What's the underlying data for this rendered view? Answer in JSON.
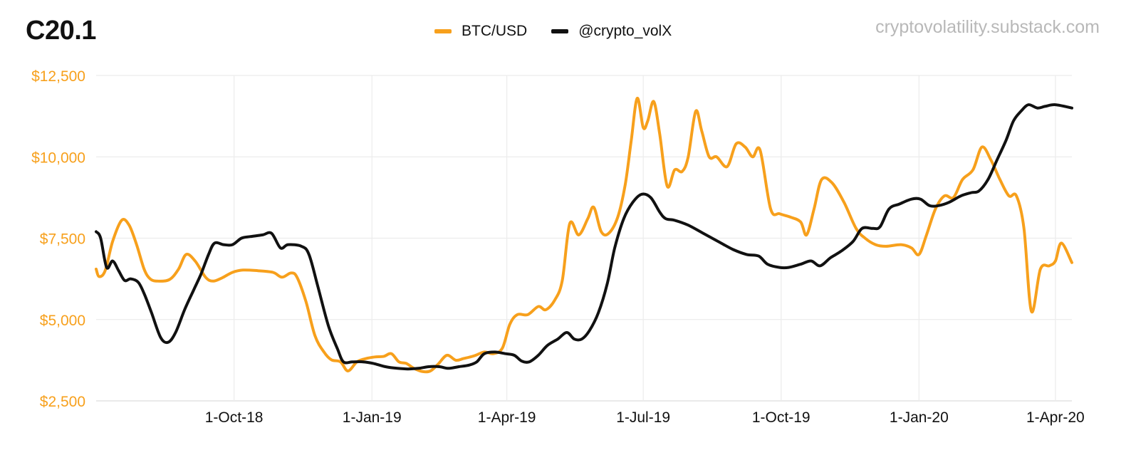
{
  "header": {
    "title": "C20.1",
    "source": "cryptovolatility.substack.com"
  },
  "colors": {
    "btc": "#f7a01c",
    "vol": "#111111",
    "grid": "#ececec",
    "ytick": "#f7a01c",
    "xtick": "#111111"
  },
  "chart_data": {
    "type": "line",
    "xlabel": "",
    "ylabel": "",
    "ylim": [
      2500,
      12500
    ],
    "xlim": [
      "2018-07-01",
      "2020-04-12"
    ],
    "y_ticks": [
      2500,
      5000,
      7500,
      10000,
      12500
    ],
    "y_tick_labels": [
      "$2,500",
      "$5,000",
      "$7,500",
      "$10,000",
      "$12,500"
    ],
    "x_ticks": [
      "2018-10-01",
      "2019-01-01",
      "2019-04-01",
      "2019-07-01",
      "2019-10-01",
      "2020-01-01",
      "2020-04-01"
    ],
    "x_tick_labels": [
      "1-Oct-18",
      "1-Jan-19",
      "1-Apr-19",
      "1-Jul-19",
      "1-Oct-19",
      "1-Jan-20",
      "1-Apr-20"
    ],
    "grid": "vertical and horizontal",
    "legend": "top-center",
    "series": [
      {
        "name": "BTC/USD",
        "color": "#f7a01c",
        "points": [
          [
            "2018-07-01",
            6550
          ],
          [
            "2018-07-03",
            6320
          ],
          [
            "2018-07-07",
            6500
          ],
          [
            "2018-07-12",
            7400
          ],
          [
            "2018-07-18",
            8050
          ],
          [
            "2018-07-23",
            7900
          ],
          [
            "2018-07-28",
            7300
          ],
          [
            "2018-08-02",
            6550
          ],
          [
            "2018-08-06",
            6250
          ],
          [
            "2018-08-11",
            6180
          ],
          [
            "2018-08-19",
            6230
          ],
          [
            "2018-08-25",
            6550
          ],
          [
            "2018-08-30",
            7000
          ],
          [
            "2018-09-05",
            6800
          ],
          [
            "2018-09-12",
            6300
          ],
          [
            "2018-09-17",
            6180
          ],
          [
            "2018-09-23",
            6280
          ],
          [
            "2018-09-30",
            6450
          ],
          [
            "2018-10-07",
            6520
          ],
          [
            "2018-10-17",
            6500
          ],
          [
            "2018-10-27",
            6450
          ],
          [
            "2018-11-02",
            6300
          ],
          [
            "2018-11-08",
            6430
          ],
          [
            "2018-11-12",
            6300
          ],
          [
            "2018-11-18",
            5550
          ],
          [
            "2018-11-24",
            4500
          ],
          [
            "2018-11-30",
            4000
          ],
          [
            "2018-12-05",
            3760
          ],
          [
            "2018-12-11",
            3700
          ],
          [
            "2018-12-16",
            3420
          ],
          [
            "2018-12-22",
            3700
          ],
          [
            "2018-12-28",
            3800
          ],
          [
            "2019-01-03",
            3850
          ],
          [
            "2019-01-09",
            3870
          ],
          [
            "2019-01-14",
            3950
          ],
          [
            "2019-01-19",
            3700
          ],
          [
            "2019-01-24",
            3650
          ],
          [
            "2019-01-29",
            3500
          ],
          [
            "2019-02-04",
            3400
          ],
          [
            "2019-02-09",
            3420
          ],
          [
            "2019-02-14",
            3620
          ],
          [
            "2019-02-20",
            3900
          ],
          [
            "2019-02-26",
            3750
          ],
          [
            "2019-03-03",
            3800
          ],
          [
            "2019-03-10",
            3880
          ],
          [
            "2019-03-17",
            4000
          ],
          [
            "2019-03-23",
            3950
          ],
          [
            "2019-03-29",
            4120
          ],
          [
            "2019-04-03",
            4850
          ],
          [
            "2019-04-08",
            5150
          ],
          [
            "2019-04-15",
            5150
          ],
          [
            "2019-04-22",
            5400
          ],
          [
            "2019-04-27",
            5300
          ],
          [
            "2019-05-03",
            5600
          ],
          [
            "2019-05-08",
            6200
          ],
          [
            "2019-05-13",
            7950
          ],
          [
            "2019-05-19",
            7600
          ],
          [
            "2019-05-25",
            8100
          ],
          [
            "2019-05-29",
            8450
          ],
          [
            "2019-06-03",
            7700
          ],
          [
            "2019-06-08",
            7650
          ],
          [
            "2019-06-14",
            8150
          ],
          [
            "2019-06-19",
            9150
          ],
          [
            "2019-06-23",
            10500
          ],
          [
            "2019-06-27",
            11800
          ],
          [
            "2019-07-01",
            10900
          ],
          [
            "2019-07-04",
            11100
          ],
          [
            "2019-07-08",
            11700
          ],
          [
            "2019-07-12",
            10700
          ],
          [
            "2019-07-17",
            9100
          ],
          [
            "2019-07-22",
            9600
          ],
          [
            "2019-07-27",
            9550
          ],
          [
            "2019-07-31",
            10000
          ],
          [
            "2019-08-05",
            11400
          ],
          [
            "2019-08-09",
            10800
          ],
          [
            "2019-08-14",
            10000
          ],
          [
            "2019-08-19",
            10000
          ],
          [
            "2019-08-26",
            9700
          ],
          [
            "2019-09-01",
            10400
          ],
          [
            "2019-09-07",
            10300
          ],
          [
            "2019-09-12",
            10000
          ],
          [
            "2019-09-17",
            10200
          ],
          [
            "2019-09-24",
            8400
          ],
          [
            "2019-09-30",
            8250
          ],
          [
            "2019-10-07",
            8150
          ],
          [
            "2019-10-14",
            8000
          ],
          [
            "2019-10-18",
            7600
          ],
          [
            "2019-10-23",
            8400
          ],
          [
            "2019-10-28",
            9300
          ],
          [
            "2019-11-04",
            9200
          ],
          [
            "2019-11-12",
            8600
          ],
          [
            "2019-11-20",
            7800
          ],
          [
            "2019-11-26",
            7500
          ],
          [
            "2019-12-03",
            7300
          ],
          [
            "2019-12-10",
            7250
          ],
          [
            "2019-12-20",
            7300
          ],
          [
            "2019-12-27",
            7200
          ],
          [
            "2020-01-01",
            7000
          ],
          [
            "2020-01-06",
            7600
          ],
          [
            "2020-01-12",
            8400
          ],
          [
            "2020-01-18",
            8800
          ],
          [
            "2020-01-24",
            8750
          ],
          [
            "2020-01-30",
            9300
          ],
          [
            "2020-02-06",
            9600
          ],
          [
            "2020-02-12",
            10300
          ],
          [
            "2020-02-18",
            9900
          ],
          [
            "2020-02-24",
            9300
          ],
          [
            "2020-03-01",
            8800
          ],
          [
            "2020-03-06",
            8800
          ],
          [
            "2020-03-11",
            7800
          ],
          [
            "2020-03-16",
            5250
          ],
          [
            "2020-03-22",
            6550
          ],
          [
            "2020-03-28",
            6650
          ],
          [
            "2020-04-01",
            6800
          ],
          [
            "2020-04-05",
            7350
          ],
          [
            "2020-04-12",
            6750
          ]
        ]
      },
      {
        "name": "@crypto_volX",
        "color": "#111111",
        "points": [
          [
            "2018-07-01",
            7700
          ],
          [
            "2018-07-04",
            7500
          ],
          [
            "2018-07-08",
            6600
          ],
          [
            "2018-07-12",
            6800
          ],
          [
            "2018-07-16",
            6500
          ],
          [
            "2018-07-20",
            6200
          ],
          [
            "2018-07-24",
            6250
          ],
          [
            "2018-07-29",
            6150
          ],
          [
            "2018-08-02",
            5800
          ],
          [
            "2018-08-07",
            5200
          ],
          [
            "2018-08-13",
            4450
          ],
          [
            "2018-08-18",
            4300
          ],
          [
            "2018-08-23",
            4600
          ],
          [
            "2018-08-29",
            5300
          ],
          [
            "2018-09-04",
            5900
          ],
          [
            "2018-09-09",
            6400
          ],
          [
            "2018-09-14",
            7000
          ],
          [
            "2018-09-18",
            7350
          ],
          [
            "2018-09-24",
            7300
          ],
          [
            "2018-09-30",
            7300
          ],
          [
            "2018-10-06",
            7500
          ],
          [
            "2018-10-12",
            7550
          ],
          [
            "2018-10-20",
            7600
          ],
          [
            "2018-10-26",
            7650
          ],
          [
            "2018-11-01",
            7200
          ],
          [
            "2018-11-06",
            7300
          ],
          [
            "2018-11-15",
            7250
          ],
          [
            "2018-11-20",
            7000
          ],
          [
            "2018-11-26",
            6000
          ],
          [
            "2018-12-03",
            4800
          ],
          [
            "2018-12-09",
            4100
          ],
          [
            "2018-12-13",
            3700
          ],
          [
            "2018-12-19",
            3700
          ],
          [
            "2018-12-26",
            3700
          ],
          [
            "2019-01-02",
            3650
          ],
          [
            "2019-01-10",
            3550
          ],
          [
            "2019-01-18",
            3500
          ],
          [
            "2019-01-25",
            3480
          ],
          [
            "2019-02-01",
            3500
          ],
          [
            "2019-02-08",
            3550
          ],
          [
            "2019-02-15",
            3550
          ],
          [
            "2019-02-21",
            3500
          ],
          [
            "2019-02-28",
            3550
          ],
          [
            "2019-03-07",
            3600
          ],
          [
            "2019-03-12",
            3700
          ],
          [
            "2019-03-17",
            3950
          ],
          [
            "2019-03-24",
            4000
          ],
          [
            "2019-03-31",
            3950
          ],
          [
            "2019-04-06",
            3900
          ],
          [
            "2019-04-11",
            3720
          ],
          [
            "2019-04-16",
            3700
          ],
          [
            "2019-04-22",
            3900
          ],
          [
            "2019-04-28",
            4200
          ],
          [
            "2019-05-05",
            4400
          ],
          [
            "2019-05-11",
            4600
          ],
          [
            "2019-05-16",
            4400
          ],
          [
            "2019-05-21",
            4400
          ],
          [
            "2019-05-26",
            4650
          ],
          [
            "2019-06-01",
            5200
          ],
          [
            "2019-06-07",
            6100
          ],
          [
            "2019-06-12",
            7200
          ],
          [
            "2019-06-18",
            8100
          ],
          [
            "2019-06-24",
            8600
          ],
          [
            "2019-06-30",
            8850
          ],
          [
            "2019-07-06",
            8750
          ],
          [
            "2019-07-12",
            8300
          ],
          [
            "2019-07-16",
            8100
          ],
          [
            "2019-07-22",
            8050
          ],
          [
            "2019-07-31",
            7900
          ],
          [
            "2019-08-10",
            7650
          ],
          [
            "2019-08-20",
            7400
          ],
          [
            "2019-08-30",
            7150
          ],
          [
            "2019-09-08",
            7000
          ],
          [
            "2019-09-16",
            6950
          ],
          [
            "2019-09-22",
            6700
          ],
          [
            "2019-09-30",
            6600
          ],
          [
            "2019-10-06",
            6600
          ],
          [
            "2019-10-14",
            6700
          ],
          [
            "2019-10-21",
            6800
          ],
          [
            "2019-10-27",
            6650
          ],
          [
            "2019-11-03",
            6900
          ],
          [
            "2019-11-10",
            7100
          ],
          [
            "2019-11-18",
            7400
          ],
          [
            "2019-11-24",
            7800
          ],
          [
            "2019-12-01",
            7800
          ],
          [
            "2019-12-06",
            7850
          ],
          [
            "2019-12-12",
            8400
          ],
          [
            "2019-12-19",
            8550
          ],
          [
            "2019-12-27",
            8700
          ],
          [
            "2020-01-02",
            8700
          ],
          [
            "2020-01-08",
            8500
          ],
          [
            "2020-01-14",
            8500
          ],
          [
            "2020-01-21",
            8600
          ],
          [
            "2020-01-29",
            8800
          ],
          [
            "2020-02-05",
            8900
          ],
          [
            "2020-02-10",
            8950
          ],
          [
            "2020-02-16",
            9300
          ],
          [
            "2020-02-22",
            9900
          ],
          [
            "2020-02-28",
            10500
          ],
          [
            "2020-03-04",
            11100
          ],
          [
            "2020-03-09",
            11400
          ],
          [
            "2020-03-14",
            11600
          ],
          [
            "2020-03-20",
            11500
          ],
          [
            "2020-03-25",
            11550
          ],
          [
            "2020-04-01",
            11600
          ],
          [
            "2020-04-12",
            11500
          ]
        ]
      }
    ]
  }
}
